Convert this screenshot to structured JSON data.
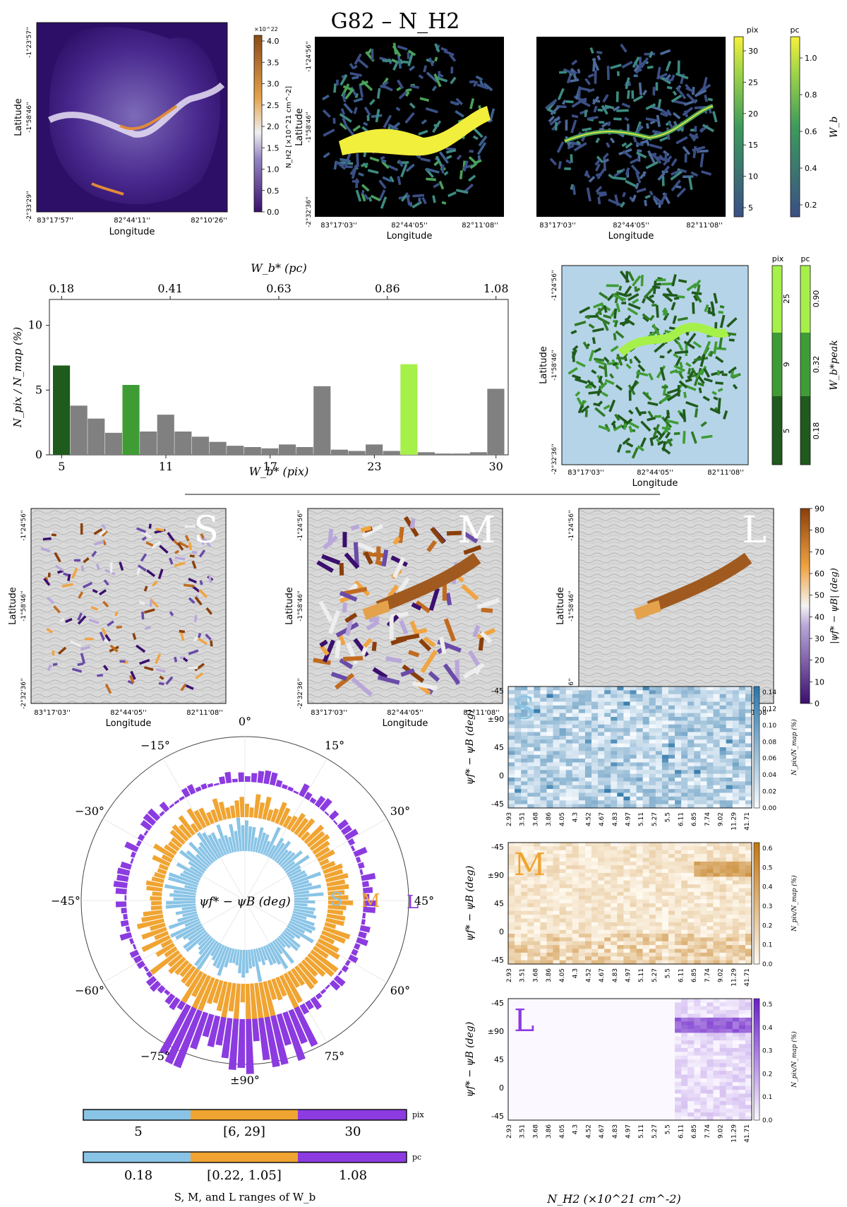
{
  "title": "G82 – N_H2",
  "top_maps": {
    "map1": {
      "ylabel": "Latitude",
      "xlabel": "Longitude",
      "yticks": [
        "-1°23'57''",
        "-1°58'46''",
        "-2°33'29''"
      ],
      "xticks": [
        "83°17'57''",
        "82°44'11''",
        "82°10'26''"
      ],
      "colorbar": {
        "label": "N_H2 [×10^21 cm^-2]",
        "exponent": "×10^22",
        "ticks": [
          "0.0",
          "0.5",
          "1.0",
          "1.5",
          "2.0",
          "2.5",
          "3.0",
          "3.5",
          "4.0"
        ]
      }
    },
    "map2": {
      "ylabel": "Latitude",
      "xlabel": "Longitude",
      "yticks": [
        "-1°24'56''",
        "-1°58'46''",
        "-2°32'36''"
      ],
      "xticks": [
        "83°17'03''",
        "82°44'05''",
        "82°11'08''"
      ]
    },
    "map3": {
      "xlabel": "Longitude",
      "xticks": [
        "83°17'03''",
        "82°44'05''",
        "82°11'08''"
      ],
      "colorbar_pix": {
        "unit": "pix",
        "ticks": [
          "5",
          "10",
          "15",
          "20",
          "25",
          "30"
        ]
      },
      "colorbar_pc": {
        "unit": "pc",
        "label": "W_b",
        "ticks": [
          "0.2",
          "0.4",
          "0.6",
          "0.8",
          "1.0"
        ]
      }
    }
  },
  "histogram": {
    "top_axis_label": "W_b* (pc)",
    "top_ticks": [
      "0.18",
      "0.41",
      "0.63",
      "0.86",
      "1.08"
    ],
    "xlabel": "W_b* (pix)",
    "ylabel": "N_pix / N_map (%)",
    "x_ticks": [
      "5",
      "11",
      "17",
      "23",
      "30"
    ],
    "y_ticks": [
      "0",
      "5",
      "10"
    ]
  },
  "peak_map": {
    "ylabel": "Latitude",
    "xlabel": "Longitude",
    "yticks": [
      "-1°24'56''",
      "-1°58'46''",
      "-2°32'36''"
    ],
    "xticks": [
      "83°17'03''",
      "82°44'05''",
      "82°11'08''"
    ],
    "colorbar_pix": {
      "unit": "pix",
      "ticks": [
        "5",
        "9",
        "25"
      ]
    },
    "colorbar_pc": {
      "unit": "pc",
      "label": "W_b*peak",
      "ticks": [
        "0.18",
        "0.32",
        "0.90"
      ]
    }
  },
  "sml_maps": {
    "panels": [
      {
        "letter": "S",
        "ylabel": "Latitude",
        "xlabel": "Longitude"
      },
      {
        "letter": "M",
        "ylabel": "Latitude",
        "xlabel": "Longitude"
      },
      {
        "letter": "L",
        "ylabel": "Latitude",
        "xlabel": "Longitude"
      }
    ],
    "yticks": [
      "-1°24'56''",
      "-1°58'46''",
      "-2°32'36''"
    ],
    "xticks": [
      "83°17'03''",
      "82°44'05''",
      "82°11'08''"
    ],
    "colorbar": {
      "label": "|ψf* − ψB| (deg)",
      "ticks": [
        "0",
        "10",
        "20",
        "30",
        "40",
        "50",
        "60",
        "70",
        "80",
        "90"
      ]
    }
  },
  "polar": {
    "center_label": "ψf* − ψB (deg)",
    "angle_labels": [
      "0°",
      "15°",
      "30°",
      "45°",
      "60°",
      "75°",
      "±90°",
      "−75°",
      "−60°",
      "−45°",
      "−30°",
      "−15°"
    ],
    "rings": [
      "S",
      "M",
      "L"
    ]
  },
  "ranges": {
    "pix": {
      "unit": "pix",
      "values": [
        "5",
        "[6, 29]",
        "30"
      ]
    },
    "pc": {
      "unit": "pc",
      "values": [
        "0.18",
        "[0.22, 1.05]",
        "1.08"
      ]
    },
    "caption": "S, M, and L ranges of W_b"
  },
  "heatmaps": {
    "ylabel": "ψf* − ψB (deg)",
    "yticks": [
      "-45",
      "±90",
      "45",
      "0",
      "-45"
    ],
    "xticks": [
      "2.93",
      "3.51",
      "3.68",
      "3.86",
      "4.05",
      "4.3",
      "4.52",
      "4.67",
      "4.83",
      "4.97",
      "5.11",
      "5.27",
      "5.5",
      "6.11",
      "6.85",
      "7.74",
      "9.02",
      "11.29",
      "41.71"
    ],
    "xlabel": "N_H2 (×10^21 cm^-2)",
    "cbar_label": "N_pix/N_map (%)",
    "panels": [
      {
        "letter": "S",
        "cbar_ticks": [
          "0.00",
          "0.02",
          "0.04",
          "0.06",
          "0.08",
          "0.10",
          "0.12",
          "0.14"
        ]
      },
      {
        "letter": "M",
        "cbar_ticks": [
          "0.0",
          "0.1",
          "0.2",
          "0.3",
          "0.4",
          "0.5",
          "0.6"
        ]
      },
      {
        "letter": "L",
        "cbar_ticks": [
          "0.0",
          "0.1",
          "0.2",
          "0.3",
          "0.4",
          "0.5"
        ]
      }
    ]
  },
  "colors": {
    "S": "#89c4e6",
    "M": "#f0a431",
    "L": "#8b3be0",
    "hist_gray": "#808080",
    "hist_dark": "#1f5b1c",
    "hist_mid": "#3f9c35",
    "hist_light": "#a6f04a",
    "peak_bg": "#b6d4e8"
  },
  "chart_data": [
    {
      "type": "bar",
      "x": [
        5,
        6,
        7,
        8,
        9,
        10,
        11,
        12,
        13,
        14,
        15,
        16,
        17,
        18,
        19,
        20,
        21,
        22,
        23,
        24,
        25,
        26,
        27,
        28,
        29,
        30
      ],
      "values": [
        6.9,
        3.8,
        2.8,
        1.7,
        5.4,
        1.8,
        3.1,
        1.8,
        1.4,
        1.0,
        0.7,
        0.6,
        0.5,
        0.8,
        0.6,
        5.3,
        0.4,
        0.3,
        0.8,
        0.3,
        7.0,
        0.2,
        0.1,
        0.1,
        0.2,
        5.1
      ],
      "highlight": {
        "5": "dark",
        "9": "mid",
        "25": "light"
      },
      "xlabel": "W_b* (pix)",
      "ylabel": "N_pix / N_map (%)",
      "ylim": [
        0,
        12
      ]
    },
    {
      "type": "heatmap",
      "panels": [
        "S",
        "M",
        "L"
      ],
      "x_categories": [
        "2.93",
        "3.51",
        "3.68",
        "3.86",
        "4.05",
        "4.3",
        "4.52",
        "4.67",
        "4.83",
        "4.97",
        "5.11",
        "5.27",
        "5.5",
        "6.11",
        "6.85",
        "7.74",
        "9.02",
        "11.29",
        "41.71"
      ]
    }
  ]
}
